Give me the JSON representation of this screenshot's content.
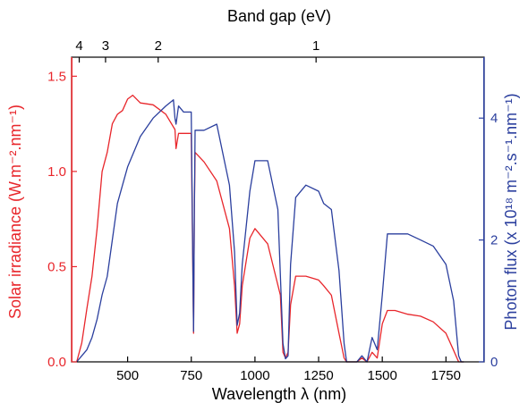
{
  "chart_data": {
    "type": "line",
    "title": "",
    "xlabel": "Wavelength λ (nm)",
    "top_xlabel": "Band gap (eV)",
    "ylabel_left": "Solar irradiance (W.m⁻².nm⁻¹)",
    "ylabel_right": "Photon flux (x 10¹⁸ m⁻².s⁻¹.nm⁻¹)",
    "xlim": [
      280,
      1900
    ],
    "ylim_left": [
      0,
      1.6
    ],
    "ylim_right": [
      0,
      5
    ],
    "x_ticks": [
      "500",
      "750",
      "1000",
      "1250",
      "1500",
      "1750"
    ],
    "y_left_ticks": [
      "0.0",
      "0.5",
      "1.0",
      "1.5"
    ],
    "y_right_ticks": [
      "0",
      "2",
      "4"
    ],
    "top_ticks": [
      {
        "label": "4",
        "ev": 4
      },
      {
        "label": "3",
        "ev": 3
      },
      {
        "label": "2",
        "ev": 2
      },
      {
        "label": "1",
        "ev": 1
      }
    ],
    "colors": {
      "irradiance": "#e8262b",
      "photon_flux": "#2b3f9e",
      "axis": "#000000"
    },
    "series": [
      {
        "axis": "left",
        "x": [
          300,
          320,
          340,
          360,
          380,
          400,
          420,
          440,
          460,
          480,
          500,
          520,
          550,
          600,
          650,
          686,
          690,
          700,
          750,
          759,
          762,
          765,
          800,
          850,
          900,
          920,
          930,
          940,
          950,
          980,
          1000,
          1050,
          1100,
          1110,
          1120,
          1130,
          1140,
          1160,
          1200,
          1250,
          1270,
          1300,
          1330,
          1350,
          1360,
          1380,
          1400,
          1420,
          1440,
          1460,
          1480,
          1500,
          1520,
          1550,
          1600,
          1650,
          1700,
          1750,
          1780,
          1800,
          1810,
          1820
        ],
        "y": [
          0.0,
          0.1,
          0.28,
          0.45,
          0.7,
          1.0,
          1.1,
          1.25,
          1.3,
          1.32,
          1.38,
          1.4,
          1.36,
          1.35,
          1.3,
          1.22,
          1.12,
          1.2,
          1.2,
          0.15,
          0.8,
          1.1,
          1.05,
          0.95,
          0.7,
          0.4,
          0.15,
          0.2,
          0.4,
          0.65,
          0.7,
          0.62,
          0.35,
          0.05,
          0.02,
          0.05,
          0.3,
          0.45,
          0.45,
          0.43,
          0.4,
          0.35,
          0.15,
          0.02,
          0.0,
          0.0,
          0.0,
          0.02,
          0.0,
          0.05,
          0.02,
          0.2,
          0.27,
          0.27,
          0.25,
          0.24,
          0.21,
          0.15,
          0.06,
          0.0,
          0.0,
          0.0
        ]
      },
      {
        "axis": "right",
        "x": [
          300,
          320,
          340,
          360,
          380,
          400,
          420,
          440,
          460,
          480,
          500,
          550,
          600,
          650,
          680,
          686,
          690,
          700,
          720,
          750,
          759,
          762,
          765,
          800,
          850,
          880,
          900,
          920,
          930,
          940,
          950,
          980,
          1000,
          1050,
          1090,
          1110,
          1120,
          1130,
          1140,
          1160,
          1200,
          1250,
          1270,
          1300,
          1330,
          1350,
          1360,
          1380,
          1400,
          1420,
          1440,
          1460,
          1480,
          1500,
          1520,
          1550,
          1600,
          1650,
          1700,
          1750,
          1780,
          1800,
          1810,
          1820
        ],
        "y": [
          0.0,
          0.1,
          0.2,
          0.4,
          0.7,
          1.1,
          1.4,
          2.0,
          2.6,
          2.9,
          3.2,
          3.7,
          4.0,
          4.2,
          4.3,
          4.0,
          3.9,
          4.2,
          4.1,
          4.1,
          0.5,
          2.5,
          3.8,
          3.8,
          3.9,
          3.3,
          2.9,
          1.8,
          0.6,
          0.8,
          1.6,
          2.8,
          3.3,
          3.3,
          2.5,
          0.3,
          0.05,
          0.1,
          1.6,
          2.7,
          2.9,
          2.8,
          2.6,
          2.5,
          1.5,
          0.3,
          0.0,
          0.0,
          0.0,
          0.1,
          0.0,
          0.4,
          0.2,
          1.1,
          2.1,
          2.1,
          2.1,
          2.0,
          1.9,
          1.6,
          1.0,
          0.1,
          0.0,
          0.0
        ]
      }
    ]
  }
}
